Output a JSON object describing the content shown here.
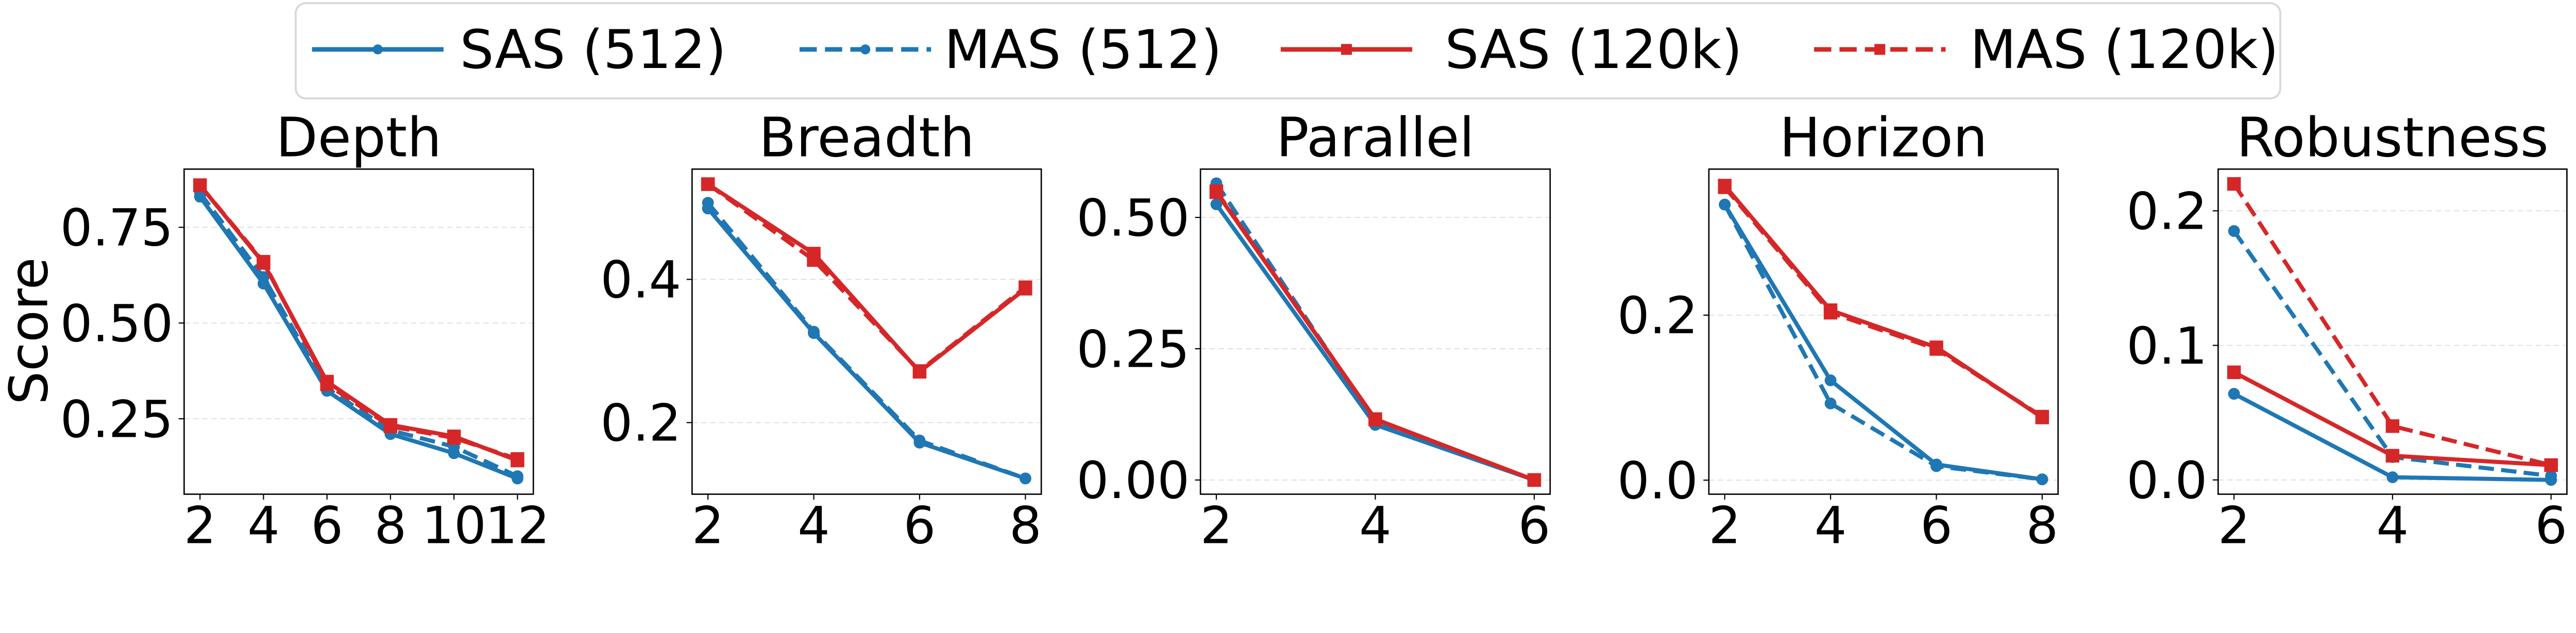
{
  "colors": {
    "blue": "#1f77b4",
    "red": "#d62728",
    "grid": "#dddddd"
  },
  "legend": {
    "placement": "top-center",
    "entries": [
      {
        "label": "SAS (512)",
        "color": "#1f77b4",
        "dash": "solid",
        "marker": "circle"
      },
      {
        "label": "MAS (512)",
        "color": "#1f77b4",
        "dash": "dashed",
        "marker": "circle"
      },
      {
        "label": "SAS (120k)",
        "color": "#d62728",
        "dash": "solid",
        "marker": "square"
      },
      {
        "label": "MAS (120k)",
        "color": "#d62728",
        "dash": "dashed",
        "marker": "square"
      }
    ]
  },
  "chart_data": [
    {
      "type": "line",
      "title": "Depth",
      "ylabel": "Score",
      "grid": "y-dashed",
      "x": [
        2,
        4,
        6,
        8,
        10,
        12
      ],
      "xlim": [
        1.5,
        12.5
      ],
      "ylim": [
        0.053,
        0.902
      ],
      "xticks": [
        "2",
        "4",
        "6",
        "8",
        "10",
        "12"
      ],
      "yticks": [
        0.25,
        0.5,
        0.75
      ],
      "ytick_labels": [
        "0.25",
        "0.50",
        "0.75"
      ],
      "series": [
        {
          "name": "SAS (512)",
          "values": [
            0.83,
            0.603,
            0.323,
            0.21,
            0.16,
            0.094
          ]
        },
        {
          "name": "MAS (512)",
          "values": [
            0.84,
            0.62,
            0.33,
            0.22,
            0.177,
            0.1
          ]
        },
        {
          "name": "SAS (120k)",
          "values": [
            0.86,
            0.657,
            0.347,
            0.234,
            0.204,
            0.141
          ]
        },
        {
          "name": "MAS (120k)",
          "values": [
            0.86,
            0.66,
            0.34,
            0.23,
            0.2,
            0.145
          ]
        }
      ]
    },
    {
      "type": "line",
      "title": "Breadth",
      "grid": "y-dashed",
      "x": [
        2,
        4,
        6,
        8
      ],
      "xlim": [
        1.7,
        8.3
      ],
      "ylim": [
        0.1,
        0.554
      ],
      "xticks": [
        "2",
        "4",
        "6",
        "8"
      ],
      "yticks": [
        0.2,
        0.4
      ],
      "ytick_labels": [
        "0.2",
        "0.4"
      ],
      "series": [
        {
          "name": "SAS (512)",
          "values": [
            0.499,
            0.325,
            0.172,
            0.122
          ]
        },
        {
          "name": "MAS (512)",
          "values": [
            0.507,
            0.327,
            0.175,
            0.122
          ]
        },
        {
          "name": "SAS (120k)",
          "values": [
            0.533,
            0.436,
            0.271,
            0.387
          ]
        },
        {
          "name": "MAS (120k)",
          "values": [
            0.533,
            0.427,
            0.272,
            0.389
          ]
        }
      ]
    },
    {
      "type": "line",
      "title": "Parallel",
      "grid": "y-dashed",
      "x": [
        2,
        4,
        6
      ],
      "xlim": [
        1.8,
        6.2
      ],
      "ylim": [
        -0.027,
        0.592
      ],
      "xticks": [
        "2",
        "4",
        "6"
      ],
      "yticks": [
        0,
        0.25,
        0.5
      ],
      "ytick_labels": [
        "0.00",
        "0.25",
        "0.50"
      ],
      "series": [
        {
          "name": "SAS (512)",
          "values": [
            0.525,
            0.105,
            0.0
          ]
        },
        {
          "name": "MAS (512)",
          "values": [
            0.565,
            0.11,
            0.0
          ]
        },
        {
          "name": "SAS (120k)",
          "values": [
            0.548,
            0.116,
            0.0
          ]
        },
        {
          "name": "MAS (120k)",
          "values": [
            0.55,
            0.115,
            0.0
          ]
        }
      ]
    },
    {
      "type": "line",
      "title": "Horizon",
      "grid": "y-dashed",
      "x": [
        2,
        4,
        6,
        8
      ],
      "xlim": [
        1.7,
        8.3
      ],
      "ylim": [
        -0.017,
        0.377
      ],
      "xticks": [
        "2",
        "4",
        "6",
        "8"
      ],
      "yticks": [
        0,
        0.2
      ],
      "ytick_labels": [
        "0.0",
        "0.2"
      ],
      "series": [
        {
          "name": "SAS (512)",
          "values": [
            0.334,
            0.121,
            0.019,
            0.001
          ]
        },
        {
          "name": "MAS (512)",
          "values": [
            0.334,
            0.093,
            0.017,
            0.001
          ]
        },
        {
          "name": "SAS (120k)",
          "values": [
            0.357,
            0.206,
            0.161,
            0.076
          ]
        },
        {
          "name": "MAS (120k)",
          "values": [
            0.355,
            0.203,
            0.159,
            0.077
          ]
        }
      ]
    },
    {
      "type": "line",
      "title": "Robustness",
      "grid": "y-dashed",
      "x": [
        2,
        4,
        6
      ],
      "xlim": [
        1.8,
        6.2
      ],
      "ylim": [
        -0.0106,
        0.231
      ],
      "xticks": [
        "2",
        "4",
        "6"
      ],
      "yticks": [
        0,
        0.1,
        0.2
      ],
      "ytick_labels": [
        "0.0",
        "0.1",
        "0.2"
      ],
      "series": [
        {
          "name": "SAS (512)",
          "values": [
            0.064,
            0.002,
            0.0
          ]
        },
        {
          "name": "MAS (512)",
          "values": [
            0.185,
            0.017,
            0.003
          ]
        },
        {
          "name": "SAS (120k)",
          "values": [
            0.08,
            0.018,
            0.011
          ]
        },
        {
          "name": "MAS (120k)",
          "values": [
            0.22,
            0.04,
            0.011
          ]
        }
      ]
    }
  ]
}
